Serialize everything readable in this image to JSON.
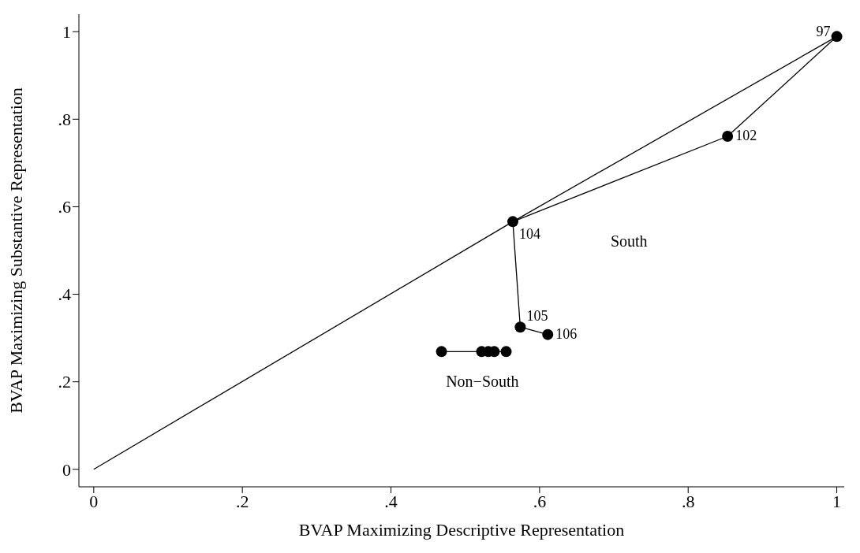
{
  "chart_data": {
    "type": "line",
    "xlabel": "BVAP Maximizing Descriptive Representation",
    "ylabel": "BVAP Maximizing Substantive Representation",
    "xlim": [
      -0.02,
      1.01
    ],
    "ylim": [
      -0.04,
      1.04
    ],
    "xticks": [
      0,
      {
        "value": 0.2,
        "label": ".2"
      },
      {
        "value": 0.4,
        "label": ".4"
      },
      {
        "value": 0.6,
        "label": ".6"
      },
      {
        "value": 0.8,
        "label": ".8"
      },
      1
    ],
    "yticks": [
      0,
      {
        "value": 0.2,
        "label": ".2"
      },
      {
        "value": 0.4,
        "label": ".4"
      },
      {
        "value": 0.6,
        "label": ".6"
      },
      {
        "value": 0.8,
        "label": ".8"
      },
      1
    ],
    "grid": false,
    "series": [
      {
        "color": "#000000",
        "x": [
          0,
          0.564,
          1
        ],
        "values": [
          0,
          0.566,
          0.989
        ]
      },
      {
        "name": "South",
        "color": "#000000",
        "marker": "circle",
        "x": [
          1,
          0.853,
          0.564,
          0.574,
          0.611
        ],
        "values": [
          0.989,
          0.761,
          0.566,
          0.325,
          0.308
        ]
      },
      {
        "name": "Non−South",
        "color": "#000000",
        "marker": "circle",
        "x": [
          0.468,
          0.522,
          0.531,
          0.539,
          0.555
        ],
        "values": [
          0.269,
          0.269,
          0.269,
          0.269,
          0.269
        ]
      }
    ],
    "annotations": [
      {
        "text": "97",
        "x": 1,
        "y": 0.989
      },
      {
        "text": "102",
        "x": 0.853,
        "y": 0.761
      },
      {
        "text": "104",
        "x": 0.564,
        "y": 0.566
      },
      {
        "text": "105",
        "x": 0.574,
        "y": 0.325
      },
      {
        "text": "106",
        "x": 0.611,
        "y": 0.308
      }
    ]
  }
}
